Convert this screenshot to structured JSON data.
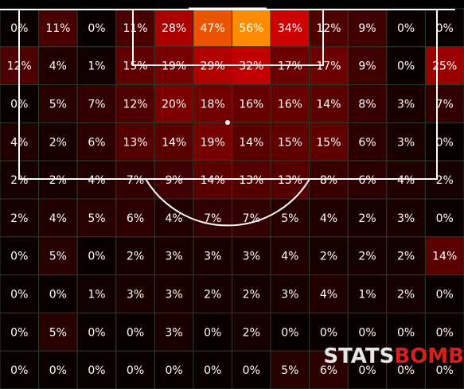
{
  "chart_data": {
    "type": "heatmap",
    "rows": [
      [
        "0%",
        "11%",
        "0%",
        "11%",
        "28%",
        "47%",
        "56%",
        "34%",
        "12%",
        "9%",
        "0%",
        "0%"
      ],
      [
        "12%",
        "4%",
        "1%",
        "15%",
        "19%",
        "29%",
        "32%",
        "17%",
        "17%",
        "9%",
        "0%",
        "25%"
      ],
      [
        "0%",
        "5%",
        "7%",
        "12%",
        "20%",
        "18%",
        "16%",
        "16%",
        "14%",
        "8%",
        "3%",
        "7%"
      ],
      [
        "4%",
        "2%",
        "6%",
        "13%",
        "14%",
        "19%",
        "14%",
        "15%",
        "15%",
        "6%",
        "3%",
        "0%"
      ],
      [
        "2%",
        "2%",
        "4%",
        "7%",
        "9%",
        "14%",
        "13%",
        "13%",
        "8%",
        "6%",
        "4%",
        "2%"
      ],
      [
        "2%",
        "4%",
        "5%",
        "6%",
        "4%",
        "7%",
        "7%",
        "5%",
        "4%",
        "2%",
        "3%",
        "0%"
      ],
      [
        "0%",
        "5%",
        "0%",
        "2%",
        "3%",
        "3%",
        "3%",
        "4%",
        "2%",
        "2%",
        "2%",
        "14%"
      ],
      [
        "0%",
        "0%",
        "1%",
        "3%",
        "3%",
        "2%",
        "2%",
        "3%",
        "4%",
        "1%",
        "2%",
        "0%"
      ],
      [
        "0%",
        "5%",
        "0%",
        "0%",
        "3%",
        "0%",
        "2%",
        "0%",
        "0%",
        "0%",
        "0%",
        "0%"
      ],
      [
        "0%",
        "0%",
        "0%",
        "0%",
        "0%",
        "0%",
        "0%",
        "5%",
        "6%",
        "0%",
        "0%",
        "0%"
      ]
    ],
    "color_scale": {
      "low": "#0a0000",
      "mid": "#cc0000",
      "high": "#ff8c00",
      "max_value": 56
    },
    "grid_color": "#2a3a30",
    "line_color": "#ffffff"
  },
  "logo": {
    "part1": "STATS",
    "part2": "BOMB"
  }
}
